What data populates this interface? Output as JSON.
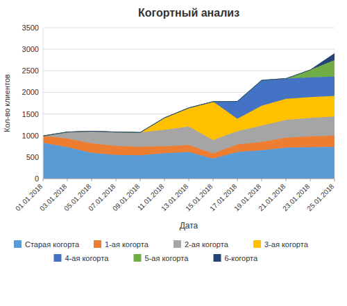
{
  "chart_data": {
    "type": "area",
    "stacked": true,
    "title": "Когортный анализ",
    "xlabel": "Дата",
    "ylabel": "Кол-во клиентов",
    "categories": [
      "01.01.2018",
      "03.01.2018",
      "05.01.2018",
      "07.01.2018",
      "09.01.2018",
      "11.01.2018",
      "13.01.2018",
      "15.01.2018",
      "17.01.2018",
      "19.01.2018",
      "21.01.2018",
      "23.01.2018",
      "25.01.2018"
    ],
    "series": [
      {
        "name": "Старая когорта",
        "color": "#5B9BD5",
        "values": [
          830,
          730,
          600,
          550,
          540,
          590,
          620,
          465,
          620,
          660,
          720,
          730,
          740
        ]
      },
      {
        "name": "1-ая когорта",
        "color": "#ED7D31",
        "values": [
          160,
          200,
          220,
          210,
          200,
          160,
          160,
          120,
          170,
          190,
          230,
          250,
          260
        ]
      },
      {
        "name": "2-ая когорта",
        "color": "#A5A5A5",
        "values": [
          0,
          150,
          280,
          320,
          330,
          380,
          430,
          310,
          310,
          380,
          410,
          430,
          440
        ]
      },
      {
        "name": "3-ая когорта",
        "color": "#FFC000",
        "values": [
          0,
          0,
          0,
          0,
          0,
          280,
          430,
          890,
          290,
          460,
          490,
          480,
          480
        ]
      },
      {
        "name": "4-ая когорта",
        "color": "#4472C4",
        "values": [
          0,
          0,
          0,
          0,
          0,
          0,
          0,
          0,
          400,
          590,
          470,
          460,
          450
        ]
      },
      {
        "name": "5-ая когорта",
        "color": "#70AD47",
        "values": [
          0,
          0,
          0,
          0,
          0,
          0,
          0,
          0,
          0,
          0,
          0,
          170,
          380
        ]
      },
      {
        "name": "6-когорта",
        "color": "#264478",
        "values": [
          0,
          0,
          0,
          0,
          0,
          0,
          0,
          0,
          0,
          0,
          0,
          0,
          150
        ]
      }
    ],
    "ylim": [
      0,
      3500
    ],
    "yticks": [
      0,
      500,
      1000,
      1500,
      2000,
      2500,
      3000,
      3500
    ],
    "grid": true,
    "legend": "bottom"
  }
}
